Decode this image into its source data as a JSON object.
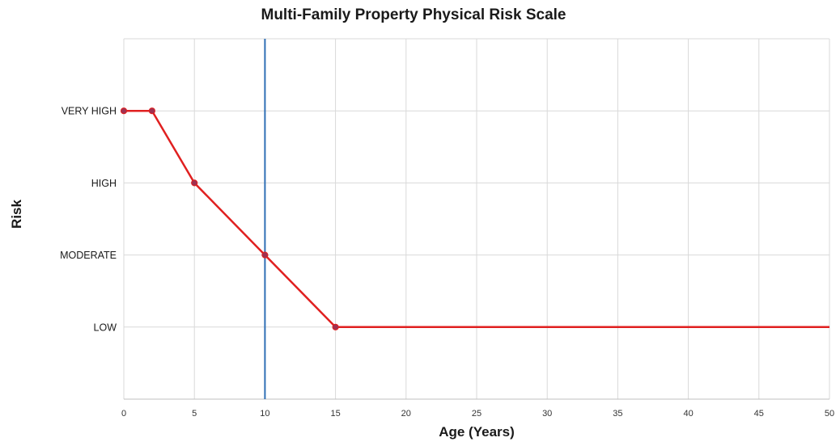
{
  "chart_data": {
    "type": "line",
    "title": "Multi-Family Property Physical Risk Scale",
    "xlabel": "Age (Years)",
    "ylabel": "Risk",
    "xlim": [
      0,
      50
    ],
    "x_ticks": [
      0,
      5,
      10,
      15,
      20,
      25,
      30,
      35,
      40,
      45,
      50
    ],
    "ylim": [
      0,
      5
    ],
    "y_tick_labels": [
      {
        "value": 1,
        "label": "LOW"
      },
      {
        "value": 2,
        "label": "MODERATE"
      },
      {
        "value": 3,
        "label": "HIGH"
      },
      {
        "value": 4,
        "label": "VERY HIGH"
      }
    ],
    "grid": true,
    "legend": "none",
    "series": [
      {
        "color": "#e02020",
        "marker_color": "#a03050",
        "points": [
          {
            "x": 0,
            "y": 4,
            "marker": true
          },
          {
            "x": 2,
            "y": 4,
            "marker": true
          },
          {
            "x": 5,
            "y": 3,
            "marker": true
          },
          {
            "x": 10,
            "y": 2,
            "marker": true
          },
          {
            "x": 15,
            "y": 1,
            "marker": true
          },
          {
            "x": 50,
            "y": 1,
            "marker": false
          }
        ]
      }
    ],
    "reference_lines": [
      {
        "orientation": "vertical",
        "x": 10,
        "color": "#2f6fb5"
      }
    ]
  }
}
